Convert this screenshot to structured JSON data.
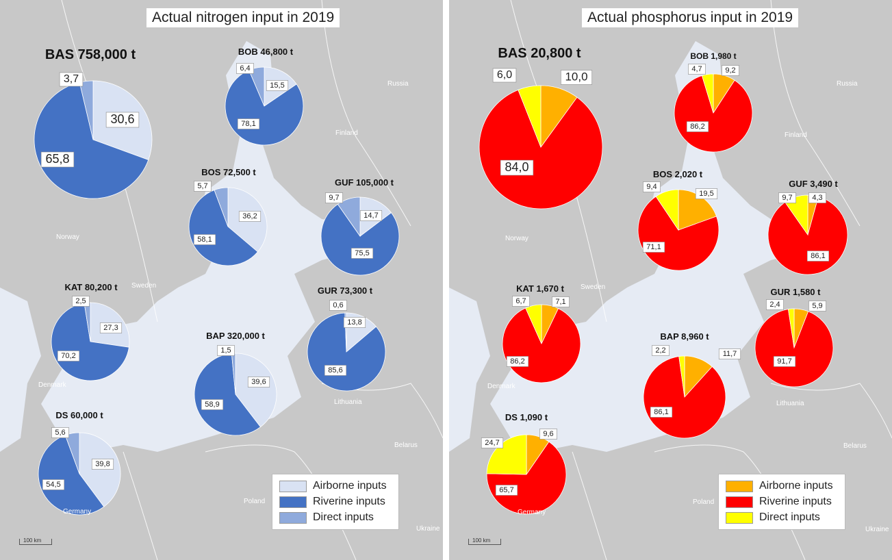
{
  "panels": [
    {
      "title": "Actual nitrogen input in 2019",
      "colors": {
        "airborne": "#d9e2f3",
        "riverine": "#4472c4",
        "direct": "#8faadc"
      },
      "countries": {
        "russia": "Russia",
        "finland": "Finland",
        "norway": "Norway",
        "sweden": "Sweden",
        "denmark": "Denmark",
        "lithuania": "Lithuania",
        "belarus": "Belarus",
        "poland": "Poland",
        "germany": "Germany",
        "ukraine": "Ukraine"
      },
      "scale": "100 km",
      "legend": {
        "airborne": "Airborne inputs",
        "riverine": "Riverine inputs",
        "direct": "Direct inputs"
      }
    },
    {
      "title": "Actual phosphorus input in 2019",
      "colors": {
        "airborne": "#ffb000",
        "riverine": "#ff0000",
        "direct": "#ffff00"
      },
      "countries": {
        "russia": "Russia",
        "finland": "Finland",
        "norway": "Norway",
        "sweden": "Sweden",
        "denmark": "Denmark",
        "lithuania": "Lithuania",
        "belarus": "Belarus",
        "poland": "Poland",
        "germany": "Germany",
        "ukraine": "Ukraine"
      },
      "scale": "100 km",
      "legend": {
        "airborne": "Airborne inputs",
        "riverine": "Riverine inputs",
        "direct": "Direct inputs"
      }
    }
  ],
  "chart_data": [
    {
      "type": "pie",
      "title": "Actual nitrogen input in 2019",
      "series_order": [
        "Airborne inputs",
        "Riverine inputs",
        "Direct inputs"
      ],
      "pies": [
        {
          "basin": "BAS",
          "label": "BAS 758,000 t",
          "total_t": 758000,
          "airborne": 30.6,
          "riverine": 65.8,
          "direct": 3.7,
          "labels": {
            "airborne": "30,6",
            "riverine": "65,8",
            "direct": "3,7"
          }
        },
        {
          "basin": "BOB",
          "label": "BOB 46,800 t",
          "total_t": 46800,
          "airborne": 15.5,
          "riverine": 78.1,
          "direct": 6.4,
          "labels": {
            "airborne": "15,5",
            "riverine": "78,1",
            "direct": "6,4"
          }
        },
        {
          "basin": "BOS",
          "label": "BOS 72,500 t",
          "total_t": 72500,
          "airborne": 36.2,
          "riverine": 58.1,
          "direct": 5.7,
          "labels": {
            "airborne": "36,2",
            "riverine": "58,1",
            "direct": "5,7"
          }
        },
        {
          "basin": "GUF",
          "label": "GUF 105,000 t",
          "total_t": 105000,
          "airborne": 14.7,
          "riverine": 75.5,
          "direct": 9.7,
          "labels": {
            "airborne": "14,7",
            "riverine": "75,5",
            "direct": "9,7"
          }
        },
        {
          "basin": "KAT",
          "label": "KAT 80,200 t",
          "total_t": 80200,
          "airborne": 27.3,
          "riverine": 70.2,
          "direct": 2.5,
          "labels": {
            "airborne": "27,3",
            "riverine": "70,2",
            "direct": "2,5"
          }
        },
        {
          "basin": "GUR",
          "label": "GUR 73,300 t",
          "total_t": 73300,
          "airborne": 13.8,
          "riverine": 85.6,
          "direct": 0.6,
          "labels": {
            "airborne": "13,8",
            "riverine": "85,6",
            "direct": "0,6"
          }
        },
        {
          "basin": "BAP",
          "label": "BAP 320,000 t",
          "total_t": 320000,
          "airborne": 39.6,
          "riverine": 58.9,
          "direct": 1.5,
          "labels": {
            "airborne": "39,6",
            "riverine": "58,9",
            "direct": "1,5"
          }
        },
        {
          "basin": "DS",
          "label": "DS 60,000 t",
          "total_t": 60000,
          "airborne": 39.8,
          "riverine": 54.5,
          "direct": 5.6,
          "labels": {
            "airborne": "39,8",
            "riverine": "54,5",
            "direct": "5,6"
          }
        }
      ]
    },
    {
      "type": "pie",
      "title": "Actual phosphorus input in 2019",
      "series_order": [
        "Airborne inputs",
        "Riverine inputs",
        "Direct inputs"
      ],
      "pies": [
        {
          "basin": "BAS",
          "label": "BAS 20,800 t",
          "total_t": 20800,
          "airborne": 10.0,
          "riverine": 84.0,
          "direct": 6.0,
          "labels": {
            "airborne": "10,0",
            "riverine": "84,0",
            "direct": "6,0"
          }
        },
        {
          "basin": "BOB",
          "label": "BOB 1,980 t",
          "total_t": 1980,
          "airborne": 9.2,
          "riverine": 86.2,
          "direct": 4.7,
          "labels": {
            "airborne": "9,2",
            "riverine": "86,2",
            "direct": "4,7"
          }
        },
        {
          "basin": "BOS",
          "label": "BOS 2,020 t",
          "total_t": 2020,
          "airborne": 19.5,
          "riverine": 71.1,
          "direct": 9.4,
          "labels": {
            "airborne": "19,5",
            "riverine": "71,1",
            "direct": "9,4"
          }
        },
        {
          "basin": "GUF",
          "label": "GUF 3,490 t",
          "total_t": 3490,
          "airborne": 4.3,
          "riverine": 86.1,
          "direct": 9.7,
          "labels": {
            "airborne": "4,3",
            "riverine": "86,1",
            "direct": "9,7"
          }
        },
        {
          "basin": "KAT",
          "label": "KAT 1,670 t",
          "total_t": 1670,
          "airborne": 7.1,
          "riverine": 86.2,
          "direct": 6.7,
          "labels": {
            "airborne": "7,1",
            "riverine": "86,2",
            "direct": "6,7"
          }
        },
        {
          "basin": "GUR",
          "label": "GUR 1,580 t",
          "total_t": 1580,
          "airborne": 5.9,
          "riverine": 91.7,
          "direct": 2.4,
          "labels": {
            "airborne": "5,9",
            "riverine": "91,7",
            "direct": "2,4"
          }
        },
        {
          "basin": "BAP",
          "label": "BAP 8,960 t",
          "total_t": 8960,
          "airborne": 11.7,
          "riverine": 86.1,
          "direct": 2.2,
          "labels": {
            "airborne": "11,7",
            "riverine": "86,1",
            "direct": "2,2"
          }
        },
        {
          "basin": "DS",
          "label": "DS 1,090 t",
          "total_t": 1090,
          "airborne": 9.6,
          "riverine": 65.7,
          "direct": 24.7,
          "labels": {
            "airborne": "9,6",
            "riverine": "65,7",
            "direct": "24,7"
          }
        }
      ]
    }
  ]
}
